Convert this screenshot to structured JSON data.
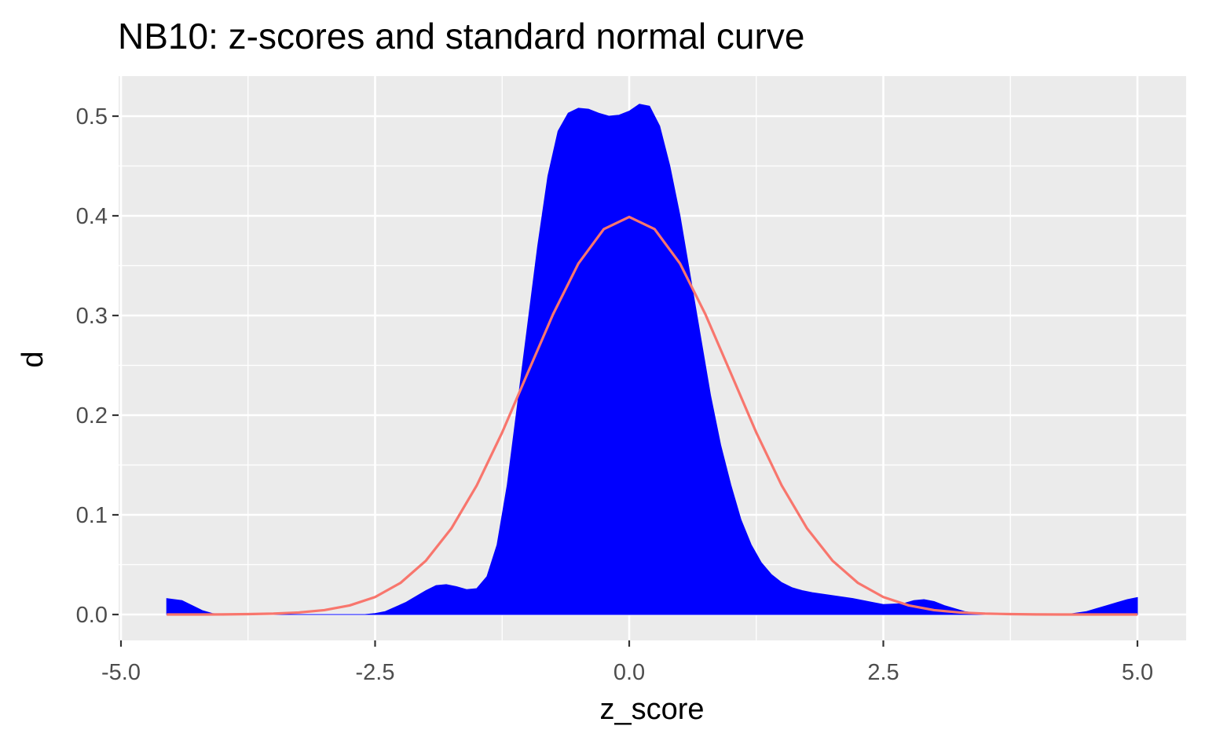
{
  "chart_data": {
    "type": "area",
    "title": "NB10: z-scores and standard normal curve",
    "xlabel": "z_score",
    "ylabel": "d",
    "xlim": [
      -5.0,
      5.0
    ],
    "ylim": [
      0.0,
      0.5
    ],
    "x_ticks": [
      -5.0,
      -2.5,
      0.0,
      2.5,
      5.0
    ],
    "x_tick_labels": [
      "-5.0",
      "-2.5",
      "0.0",
      "2.5",
      "5.0"
    ],
    "y_ticks": [
      0.0,
      0.1,
      0.2,
      0.3,
      0.4,
      0.5
    ],
    "y_tick_labels": [
      "0.0",
      "0.1",
      "0.2",
      "0.3",
      "0.4",
      "0.5"
    ],
    "grid": true,
    "legend": "none",
    "series": [
      {
        "kind": "density-area",
        "color": "#0000ff",
        "x": [
          -4.55,
          -4.4,
          -4.3,
          -4.2,
          -4.1,
          -4.0,
          -3.8,
          -3.5,
          -3.0,
          -2.6,
          -2.5,
          -2.4,
          -2.2,
          -2.0,
          -1.9,
          -1.8,
          -1.7,
          -1.6,
          -1.5,
          -1.4,
          -1.3,
          -1.2,
          -1.1,
          -1.0,
          -0.9,
          -0.8,
          -0.7,
          -0.6,
          -0.5,
          -0.4,
          -0.3,
          -0.2,
          -0.1,
          0.0,
          0.1,
          0.2,
          0.3,
          0.4,
          0.5,
          0.6,
          0.7,
          0.8,
          0.9,
          1.0,
          1.1,
          1.2,
          1.3,
          1.4,
          1.5,
          1.6,
          1.7,
          1.8,
          2.0,
          2.2,
          2.4,
          2.5,
          2.7,
          2.8,
          2.9,
          3.0,
          3.1,
          3.3,
          3.5,
          4.0,
          4.3,
          4.5,
          4.6,
          4.7,
          4.8,
          4.9,
          5.0
        ],
        "y": [
          0.016,
          0.014,
          0.009,
          0.004,
          0.001,
          0.0,
          0.0,
          0.0,
          0.0,
          0.0,
          0.001,
          0.003,
          0.012,
          0.024,
          0.029,
          0.03,
          0.028,
          0.025,
          0.026,
          0.038,
          0.07,
          0.13,
          0.21,
          0.29,
          0.37,
          0.44,
          0.485,
          0.503,
          0.508,
          0.507,
          0.503,
          0.5,
          0.501,
          0.505,
          0.512,
          0.51,
          0.49,
          0.45,
          0.4,
          0.34,
          0.28,
          0.22,
          0.17,
          0.13,
          0.095,
          0.07,
          0.052,
          0.04,
          0.032,
          0.027,
          0.024,
          0.022,
          0.019,
          0.016,
          0.012,
          0.01,
          0.011,
          0.014,
          0.015,
          0.013,
          0.009,
          0.003,
          0.0,
          0.0,
          0.0,
          0.003,
          0.006,
          0.009,
          0.012,
          0.015,
          0.017
        ]
      },
      {
        "kind": "line",
        "color": "#f8766d",
        "x": [
          -4.55,
          -4.25,
          -4.0,
          -3.75,
          -3.5,
          -3.25,
          -3.0,
          -2.75,
          -2.5,
          -2.25,
          -2.0,
          -1.75,
          -1.5,
          -1.25,
          -1.0,
          -0.75,
          -0.5,
          -0.25,
          0.0,
          0.25,
          0.5,
          0.75,
          1.0,
          1.25,
          1.5,
          1.75,
          2.0,
          2.25,
          2.5,
          2.75,
          3.0,
          3.25,
          3.5,
          3.75,
          4.0,
          4.25,
          4.5,
          4.75,
          5.0
        ],
        "y": [
          0.0,
          0.0,
          0.0001,
          0.0004,
          0.0009,
          0.002,
          0.0044,
          0.0091,
          0.0175,
          0.0317,
          0.054,
          0.0863,
          0.1295,
          0.1826,
          0.242,
          0.3011,
          0.3521,
          0.3867,
          0.3989,
          0.3867,
          0.3521,
          0.3011,
          0.242,
          0.1826,
          0.1295,
          0.0863,
          0.054,
          0.0317,
          0.0175,
          0.0091,
          0.0044,
          0.002,
          0.0009,
          0.0004,
          0.0001,
          0.0,
          0.0,
          0.0,
          0.0
        ]
      }
    ]
  }
}
